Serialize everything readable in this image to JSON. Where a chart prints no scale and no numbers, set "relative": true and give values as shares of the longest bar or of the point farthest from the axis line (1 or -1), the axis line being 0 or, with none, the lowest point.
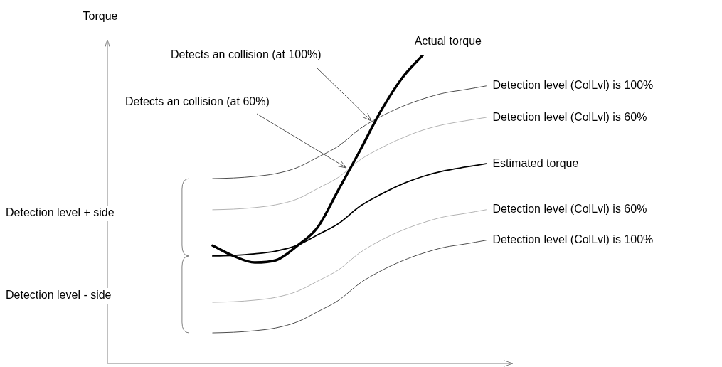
{
  "chart_data": {
    "type": "line",
    "relative": true,
    "marker": "none",
    "legend": false,
    "ylabel": "Torque",
    "categories": [
      null,
      null,
      null,
      null,
      null,
      null,
      null,
      null,
      null,
      null,
      null,
      null,
      null,
      null,
      null,
      null,
      null,
      null,
      null,
      null
    ],
    "series": [
      {
        "name": "Actual torque",
        "color": "#000000",
        "values": [
          null,
          null,
          null,
          null,
          null,
          0.382,
          0.348,
          0.327,
          0.334,
          0.38,
          0.442,
          0.565,
          0.689,
          0.818,
          0.924,
          1,
          null,
          null,
          null,
          null
        ]
      },
      {
        "name": "Detection level (ColLvl) is 100%",
        "color": "#4d4d4d",
        "values": [
          null,
          null,
          null,
          null,
          null,
          0.599,
          0.601,
          0.606,
          0.615,
          0.634,
          0.668,
          0.705,
          0.76,
          0.8,
          0.832,
          0.857,
          0.876,
          0.887,
          0.899,
          null
        ]
      },
      {
        "name": "Detection level (ColLvl) is 60%",
        "color": "#b3b3b3",
        "values": [
          null,
          null,
          null,
          null,
          null,
          0.498,
          0.5,
          0.505,
          0.514,
          0.532,
          0.567,
          0.604,
          0.659,
          0.698,
          0.73,
          0.756,
          0.774,
          0.786,
          0.797,
          null
        ]
      },
      {
        "name": "Estimated torque",
        "color": "#000000",
        "values": [
          null,
          null,
          null,
          null,
          null,
          0.348,
          0.35,
          0.355,
          0.364,
          0.382,
          0.417,
          0.454,
          0.509,
          0.548,
          0.581,
          0.606,
          0.624,
          0.636,
          0.647,
          null
        ]
      },
      {
        "name": "Detection level (ColLvl) is 60%",
        "color": "#b3b3b3",
        "values": [
          null,
          null,
          null,
          null,
          null,
          0.198,
          0.2,
          0.205,
          0.214,
          0.233,
          0.267,
          0.304,
          0.359,
          0.399,
          0.431,
          0.456,
          0.475,
          0.486,
          0.498,
          null
        ]
      },
      {
        "name": "Detection level (ColLvl) is 100%",
        "color": "#4d4d4d",
        "values": [
          null,
          null,
          null,
          null,
          null,
          0.099,
          0.101,
          0.106,
          0.115,
          0.134,
          0.168,
          0.205,
          0.26,
          0.3,
          0.332,
          0.357,
          0.376,
          0.387,
          0.399,
          null
        ]
      }
    ],
    "annotations": [
      "Detects an collision (at 100%)",
      "Detects an collision (at 60%)",
      "Detection level + side",
      "Detection level - side"
    ]
  }
}
